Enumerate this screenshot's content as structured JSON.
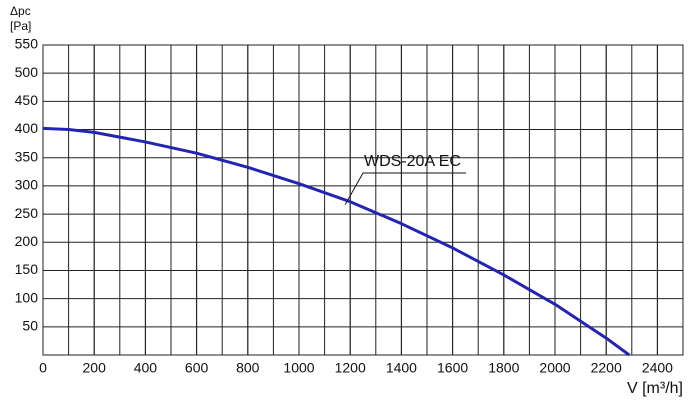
{
  "chart_data": {
    "type": "line",
    "ylabel": [
      "Δpc",
      "[Pa]"
    ],
    "xlabel": "V [m³/h]",
    "x": [
      0,
      100,
      200,
      400,
      600,
      800,
      1000,
      1200,
      1400,
      1600,
      1800,
      2000,
      2200,
      2290
    ],
    "series": [
      {
        "name": "WDS-20A EC",
        "color": "#2424b4",
        "values": [
          402,
          400,
          395,
          378,
          358,
          333,
          304,
          272,
          233,
          190,
          142,
          90,
          30,
          0
        ]
      }
    ],
    "xlim": [
      0,
      2500
    ],
    "ylim": [
      0,
      550
    ],
    "xticks": [
      0,
      200,
      400,
      600,
      800,
      1000,
      1200,
      1400,
      1600,
      1800,
      2000,
      2200,
      2400
    ],
    "yticks": [
      50,
      100,
      150,
      200,
      250,
      300,
      350,
      400,
      450,
      500,
      550
    ],
    "xminor": 100,
    "grid": true
  }
}
